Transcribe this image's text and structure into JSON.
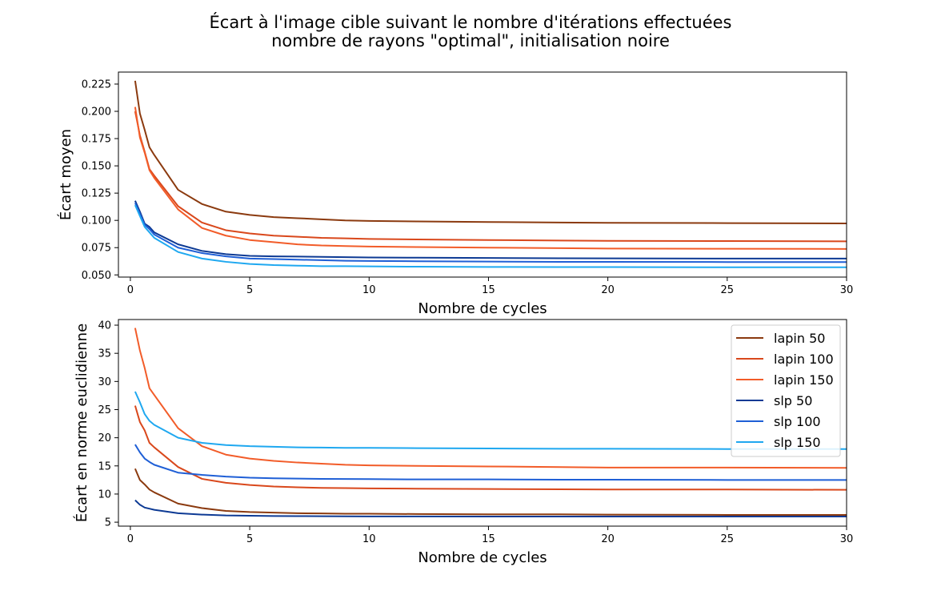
{
  "figure": {
    "title_line1": "Écart à l'image cible suivant le nombre d'itérations effectuées",
    "title_line2": "nombre de rayons \"optimal\", initialisation noire"
  },
  "chart_data": [
    {
      "type": "line",
      "xlabel": "Nombre de cycles",
      "ylabel": "Écart moyen",
      "xlim": [
        -0.5,
        30
      ],
      "ylim": [
        0.048,
        0.236
      ],
      "xticks": [
        0,
        5,
        10,
        15,
        20,
        25,
        30
      ],
      "yticks": [
        0.05,
        0.075,
        0.1,
        0.125,
        0.15,
        0.175,
        0.2,
        0.225
      ],
      "ytick_decimals": 3,
      "grid": false,
      "x": [
        0.2,
        0.4,
        0.6,
        0.8,
        1,
        2,
        3,
        4,
        5,
        6,
        7,
        8,
        9,
        10,
        12,
        15,
        18,
        20,
        25,
        30
      ],
      "series": [
        {
          "name": "lapin 50",
          "color": "#8B3A0F",
          "values": [
            0.228,
            0.198,
            0.183,
            0.167,
            0.16,
            0.128,
            0.115,
            0.108,
            0.105,
            0.103,
            0.102,
            0.101,
            0.1,
            0.0995,
            0.099,
            0.0985,
            0.098,
            0.0978,
            0.0975,
            0.0972
          ]
        },
        {
          "name": "lapin 100",
          "color": "#D9481C",
          "values": [
            0.2,
            0.178,
            0.163,
            0.147,
            0.141,
            0.113,
            0.098,
            0.091,
            0.088,
            0.086,
            0.085,
            0.084,
            0.0835,
            0.083,
            0.0825,
            0.082,
            0.0815,
            0.0812,
            0.081,
            0.0808
          ]
        },
        {
          "name": "lapin 150",
          "color": "#F25C29",
          "values": [
            0.204,
            0.176,
            0.162,
            0.146,
            0.139,
            0.11,
            0.093,
            0.086,
            0.082,
            0.08,
            0.078,
            0.077,
            0.0765,
            0.076,
            0.0755,
            0.075,
            0.0745,
            0.0742,
            0.074,
            0.0738
          ]
        },
        {
          "name": "slp 50",
          "color": "#0D3A94",
          "values": [
            0.118,
            0.108,
            0.097,
            0.094,
            0.089,
            0.078,
            0.072,
            0.069,
            0.0675,
            0.067,
            0.0668,
            0.0665,
            0.0663,
            0.066,
            0.0658,
            0.0655,
            0.0653,
            0.0652,
            0.065,
            0.065
          ]
        },
        {
          "name": "slp 100",
          "color": "#1F5FD6",
          "values": [
            0.116,
            0.106,
            0.096,
            0.092,
            0.087,
            0.075,
            0.07,
            0.067,
            0.065,
            0.0645,
            0.064,
            0.0635,
            0.063,
            0.0628,
            0.0625,
            0.0622,
            0.062,
            0.062,
            0.0618,
            0.0618
          ]
        },
        {
          "name": "slp 150",
          "color": "#1FA8F0",
          "values": [
            0.114,
            0.104,
            0.094,
            0.089,
            0.084,
            0.071,
            0.065,
            0.062,
            0.06,
            0.059,
            0.0585,
            0.058,
            0.058,
            0.0578,
            0.0575,
            0.0573,
            0.0572,
            0.0572,
            0.057,
            0.057
          ]
        }
      ]
    },
    {
      "type": "line",
      "xlabel": "Nombre de cycles",
      "ylabel": "Écart en norme euclidienne",
      "xlim": [
        -0.5,
        30
      ],
      "ylim": [
        4.3,
        41
      ],
      "xticks": [
        0,
        5,
        10,
        15,
        20,
        25,
        30
      ],
      "yticks": [
        5,
        10,
        15,
        20,
        25,
        30,
        35,
        40
      ],
      "ytick_decimals": 0,
      "grid": false,
      "legend": "upper right",
      "x": [
        0.2,
        0.4,
        0.6,
        0.8,
        1,
        2,
        3,
        4,
        5,
        6,
        7,
        8,
        9,
        10,
        12,
        15,
        18,
        20,
        25,
        30
      ],
      "series": [
        {
          "name": "lapin 50",
          "color": "#8B3A0F",
          "values": [
            14.5,
            12.5,
            11.7,
            10.8,
            10.3,
            8.3,
            7.5,
            7.0,
            6.8,
            6.7,
            6.6,
            6.55,
            6.5,
            6.5,
            6.45,
            6.4,
            6.4,
            6.35,
            6.3,
            6.3
          ]
        },
        {
          "name": "lapin 100",
          "color": "#D9481C",
          "values": [
            25.7,
            22.8,
            21.3,
            19.1,
            18.3,
            14.8,
            12.7,
            12.0,
            11.6,
            11.35,
            11.2,
            11.1,
            11.05,
            11.0,
            10.95,
            10.9,
            10.85,
            10.8,
            10.8,
            10.75
          ]
        },
        {
          "name": "lapin 150",
          "color": "#F25C29",
          "values": [
            39.5,
            35.5,
            32.4,
            28.8,
            27.6,
            21.7,
            18.5,
            17.0,
            16.3,
            15.9,
            15.6,
            15.4,
            15.2,
            15.1,
            15.0,
            14.9,
            14.8,
            14.7,
            14.7,
            14.65
          ]
        },
        {
          "name": "slp 50",
          "color": "#0D3A94",
          "values": [
            8.9,
            8.1,
            7.6,
            7.4,
            7.2,
            6.6,
            6.35,
            6.2,
            6.15,
            6.1,
            6.08,
            6.06,
            6.05,
            6.03,
            6.02,
            6.01,
            6.0,
            6.0,
            6.0,
            6.0
          ]
        },
        {
          "name": "slp 100",
          "color": "#1F5FD6",
          "values": [
            18.8,
            17.4,
            16.3,
            15.7,
            15.2,
            13.8,
            13.4,
            13.1,
            12.9,
            12.8,
            12.75,
            12.7,
            12.68,
            12.65,
            12.6,
            12.6,
            12.55,
            12.55,
            12.5,
            12.5
          ]
        },
        {
          "name": "slp 150",
          "color": "#1FA8F0",
          "values": [
            28.2,
            26.3,
            24.2,
            23.0,
            22.3,
            20.0,
            19.1,
            18.7,
            18.5,
            18.4,
            18.3,
            18.25,
            18.2,
            18.2,
            18.15,
            18.1,
            18.05,
            18.05,
            18.0,
            18.0
          ]
        }
      ]
    }
  ]
}
